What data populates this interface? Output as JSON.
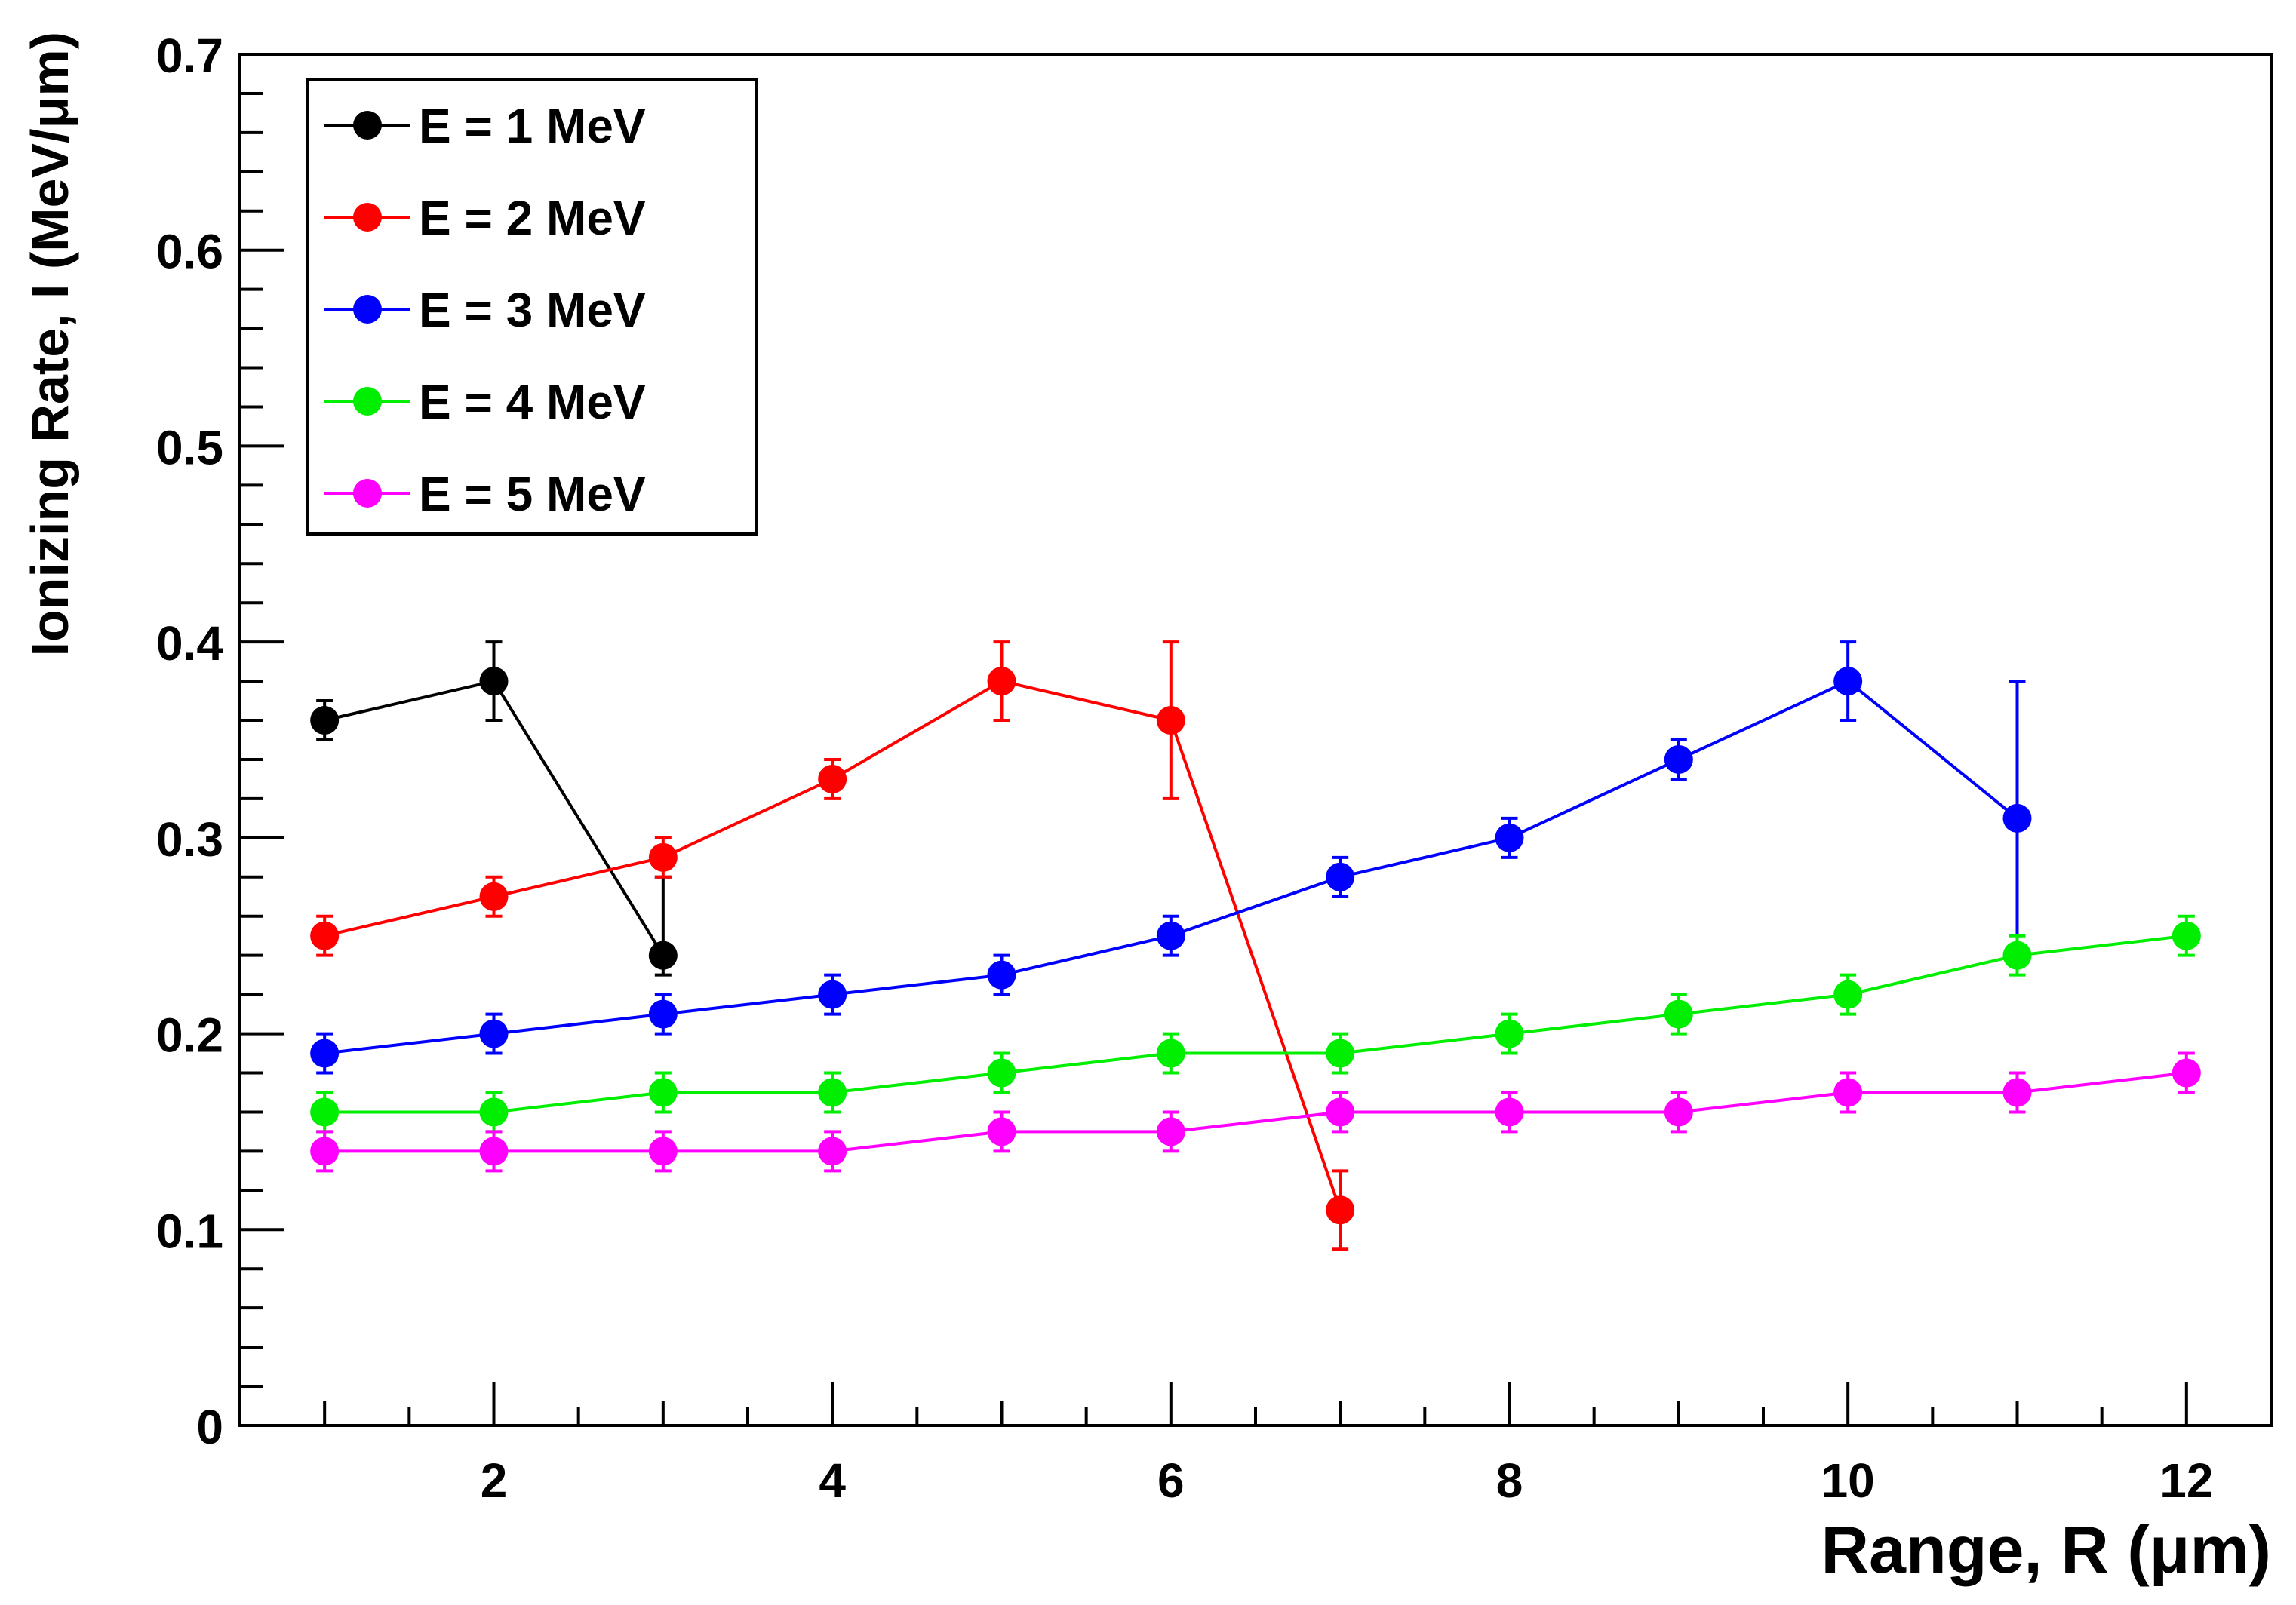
{
  "chart_data": {
    "type": "scatter",
    "title": "",
    "xlabel": "Range, R (μm)",
    "ylabel": "Ionizing Rate, I (MeV/μm)",
    "xlim": [
      0.5,
      12.5
    ],
    "ylim": [
      0,
      0.7
    ],
    "x_ticks": [
      2,
      4,
      6,
      8,
      10,
      12
    ],
    "y_ticks": [
      0,
      0.1,
      0.2,
      0.3,
      0.4,
      0.5,
      0.6,
      0.7
    ],
    "x_tick_labels": [
      "2",
      "4",
      "6",
      "8",
      "10",
      "12"
    ],
    "y_tick_labels": [
      "0",
      "0.1",
      "0.2",
      "0.3",
      "0.4",
      "0.5",
      "0.6",
      "0.7"
    ],
    "grid": false,
    "legend_position": "top-left",
    "series": [
      {
        "name": "E = 1 MeV",
        "color": "#000000",
        "x": [
          1,
          2,
          3
        ],
        "y": [
          0.36,
          0.38,
          0.24
        ],
        "err_low": [
          0.01,
          0.02,
          0.01
        ],
        "err_high": [
          0.01,
          0.02,
          0.04
        ]
      },
      {
        "name": "E = 2 MeV",
        "color": "#ff0000",
        "x": [
          1,
          2,
          3,
          4,
          5,
          6,
          7
        ],
        "y": [
          0.25,
          0.27,
          0.29,
          0.33,
          0.38,
          0.36,
          0.11
        ],
        "err_low": [
          0.01,
          0.01,
          0.01,
          0.01,
          0.02,
          0.04,
          0.02
        ],
        "err_high": [
          0.01,
          0.01,
          0.01,
          0.01,
          0.02,
          0.04,
          0.02
        ]
      },
      {
        "name": "E = 3 MeV",
        "color": "#0000ff",
        "x": [
          1,
          2,
          3,
          4,
          5,
          6,
          7,
          8,
          9,
          10,
          11
        ],
        "y": [
          0.19,
          0.2,
          0.21,
          0.22,
          0.23,
          0.25,
          0.28,
          0.3,
          0.34,
          0.38,
          0.31
        ],
        "err_low": [
          0.01,
          0.01,
          0.01,
          0.01,
          0.01,
          0.01,
          0.01,
          0.01,
          0.01,
          0.02,
          0.07
        ],
        "err_high": [
          0.01,
          0.01,
          0.01,
          0.01,
          0.01,
          0.01,
          0.01,
          0.01,
          0.01,
          0.02,
          0.07
        ]
      },
      {
        "name": "E = 4 MeV",
        "color": "#00ee00",
        "x": [
          1,
          2,
          3,
          4,
          5,
          6,
          7,
          8,
          9,
          10,
          11,
          12
        ],
        "y": [
          0.16,
          0.16,
          0.17,
          0.17,
          0.18,
          0.19,
          0.19,
          0.2,
          0.21,
          0.22,
          0.24,
          0.25
        ],
        "err_low": [
          0.01,
          0.01,
          0.01,
          0.01,
          0.01,
          0.01,
          0.01,
          0.01,
          0.01,
          0.01,
          0.01,
          0.01
        ],
        "err_high": [
          0.01,
          0.01,
          0.01,
          0.01,
          0.01,
          0.01,
          0.01,
          0.01,
          0.01,
          0.01,
          0.01,
          0.01
        ]
      },
      {
        "name": "E = 5 MeV",
        "color": "#ff00ff",
        "x": [
          1,
          2,
          3,
          4,
          5,
          6,
          7,
          8,
          9,
          10,
          11,
          12
        ],
        "y": [
          0.14,
          0.14,
          0.14,
          0.14,
          0.15,
          0.15,
          0.16,
          0.16,
          0.16,
          0.17,
          0.17,
          0.18
        ],
        "err_low": [
          0.01,
          0.01,
          0.01,
          0.01,
          0.01,
          0.01,
          0.01,
          0.01,
          0.01,
          0.01,
          0.01,
          0.01
        ],
        "err_high": [
          0.01,
          0.01,
          0.01,
          0.01,
          0.01,
          0.01,
          0.01,
          0.01,
          0.01,
          0.01,
          0.01,
          0.01
        ]
      }
    ]
  }
}
